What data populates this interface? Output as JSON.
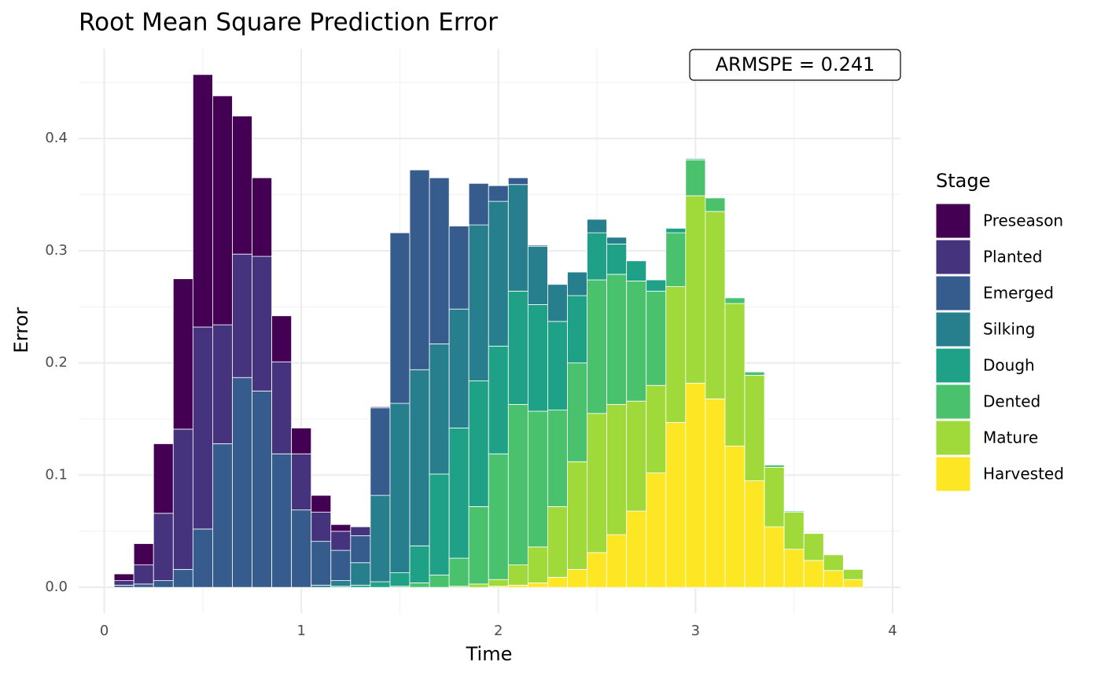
{
  "chart_data": {
    "type": "stacked_bar",
    "title": "Root Mean Square Prediction Error",
    "x_label": "Time",
    "y_label": "Error",
    "legend_title": "Stage",
    "annotation": "ARMSPE = 0.241",
    "x": [
      0.1,
      0.2,
      0.3,
      0.4,
      0.5,
      0.6,
      0.7,
      0.8,
      0.9,
      1.0,
      1.1,
      1.2,
      1.3,
      1.4,
      1.5,
      1.6,
      1.7,
      1.8,
      1.9,
      2.0,
      2.1,
      2.2,
      2.3,
      2.4,
      2.5,
      2.6,
      2.7,
      2.8,
      2.9,
      3.0,
      3.1,
      3.2,
      3.3,
      3.4,
      3.5,
      3.6,
      3.7,
      3.8
    ],
    "series": [
      {
        "name": "Preseason",
        "color": "#440154",
        "values": [
          0.006,
          0.019,
          0.062,
          0.134,
          0.225,
          0.204,
          0.123,
          0.07,
          0.041,
          0.023,
          0.015,
          0.006,
          0,
          0,
          0,
          0,
          0,
          0,
          0,
          0,
          0,
          0,
          0,
          0,
          0,
          0,
          0,
          0,
          0,
          0,
          0,
          0,
          0,
          0,
          0,
          0,
          0,
          0
        ]
      },
      {
        "name": "Planted",
        "color": "#46337E",
        "values": [
          0.004,
          0.017,
          0.06,
          0.125,
          0.18,
          0.106,
          0.11,
          0.12,
          0.082,
          0.05,
          0.026,
          0.017,
          0.008,
          0.001,
          0,
          0,
          0,
          0,
          0,
          0,
          0,
          0,
          0,
          0,
          0,
          0,
          0,
          0,
          0,
          0,
          0,
          0,
          0,
          0,
          0,
          0,
          0,
          0
        ]
      },
      {
        "name": "Emerged",
        "color": "#365C8D",
        "values": [
          0.002,
          0.003,
          0.006,
          0.016,
          0.052,
          0.128,
          0.187,
          0.175,
          0.119,
          0.069,
          0.039,
          0.027,
          0.024,
          0.078,
          0.152,
          0.178,
          0.148,
          0.074,
          0.037,
          0.014,
          0.006,
          0.001,
          0,
          0,
          0,
          0,
          0,
          0,
          0,
          0,
          0,
          0,
          0,
          0,
          0,
          0,
          0,
          0
        ]
      },
      {
        "name": "Silking",
        "color": "#277F8E",
        "values": [
          0,
          0,
          0,
          0,
          0,
          0,
          0,
          0,
          0,
          0,
          0.002,
          0.005,
          0.02,
          0.077,
          0.151,
          0.157,
          0.116,
          0.106,
          0.139,
          0.129,
          0.095,
          0.052,
          0.033,
          0.021,
          0.012,
          0.006,
          0,
          0,
          0,
          0,
          0,
          0,
          0,
          0,
          0,
          0,
          0,
          0
        ]
      },
      {
        "name": "Dough",
        "color": "#1FA187",
        "values": [
          0,
          0,
          0,
          0,
          0,
          0,
          0,
          0,
          0,
          0,
          0,
          0.001,
          0.002,
          0.005,
          0.012,
          0.033,
          0.09,
          0.116,
          0.112,
          0.096,
          0.101,
          0.095,
          0.079,
          0.06,
          0.042,
          0.027,
          0.018,
          0.01,
          0.004,
          0.001,
          0,
          0,
          0,
          0,
          0,
          0,
          0,
          0
        ]
      },
      {
        "name": "Dented",
        "color": "#4AC16D",
        "values": [
          0,
          0,
          0,
          0,
          0,
          0,
          0,
          0,
          0,
          0,
          0,
          0,
          0,
          0,
          0.001,
          0.004,
          0.011,
          0.025,
          0.069,
          0.112,
          0.143,
          0.121,
          0.086,
          0.088,
          0.119,
          0.116,
          0.107,
          0.084,
          0.048,
          0.032,
          0.012,
          0.005,
          0.003,
          0.002,
          0.001,
          0,
          0,
          0
        ]
      },
      {
        "name": "Mature",
        "color": "#9FDA3A",
        "values": [
          0,
          0,
          0,
          0,
          0,
          0,
          0,
          0,
          0,
          0,
          0,
          0,
          0,
          0,
          0,
          0,
          0,
          0.001,
          0.003,
          0.006,
          0.018,
          0.032,
          0.063,
          0.096,
          0.124,
          0.116,
          0.098,
          0.078,
          0.121,
          0.167,
          0.167,
          0.127,
          0.094,
          0.053,
          0.033,
          0.024,
          0.014,
          0.009
        ]
      },
      {
        "name": "Harvested",
        "color": "#FDE725",
        "values": [
          0,
          0,
          0,
          0,
          0,
          0,
          0,
          0,
          0,
          0,
          0,
          0,
          0,
          0,
          0,
          0,
          0,
          0,
          0,
          0.001,
          0.002,
          0.004,
          0.009,
          0.016,
          0.031,
          0.047,
          0.068,
          0.102,
          0.147,
          0.182,
          0.168,
          0.126,
          0.095,
          0.054,
          0.034,
          0.024,
          0.015,
          0.007
        ]
      }
    ],
    "bar_width": 0.1,
    "xlim": [
      -0.13,
      4.04
    ],
    "ylim": [
      -0.023,
      0.48
    ],
    "xticks": [
      0,
      1,
      2,
      3,
      4
    ],
    "yticks": [
      {
        "value": 0,
        "label": "0.0"
      },
      0.1,
      0.2,
      0.3,
      0.4
    ],
    "x_minor_ticks": [
      0.5,
      1.5,
      2.5,
      3.5
    ],
    "y_minor_ticks": [
      0.05,
      0.15,
      0.25,
      0.35,
      0.45
    ],
    "grid": true
  }
}
